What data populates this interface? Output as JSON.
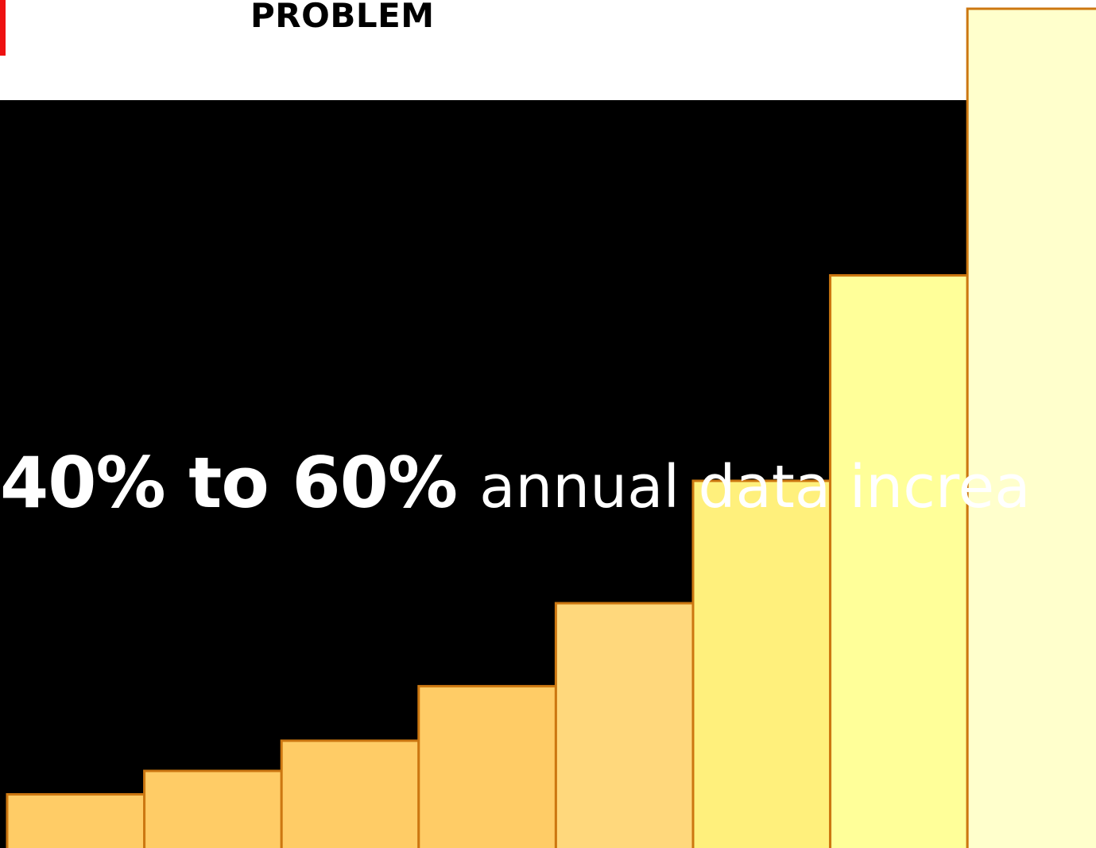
{
  "slide": {
    "title": "PROBLEM",
    "headline_bold": "40% to 60%",
    "headline_rest": "annual data increa"
  },
  "colors": {
    "accent": "#ee1111",
    "panel_background": "#000000",
    "bar_stroke": "#cc7711",
    "headline_text": "#ffffff"
  },
  "chart_data": {
    "type": "bar",
    "title": "",
    "xlabel": "",
    "ylabel": "",
    "ylim": [
      0,
      100
    ],
    "values": [
      6.3,
      9.1,
      12.7,
      19.2,
      29.1,
      43.7,
      68.2,
      100
    ],
    "bar_colors": [
      "#ffcc66",
      "#ffcc66",
      "#ffcc66",
      "#ffcc66",
      "#ffd87c",
      "#fff07c",
      "#ffff99",
      "#ffffcc"
    ]
  }
}
